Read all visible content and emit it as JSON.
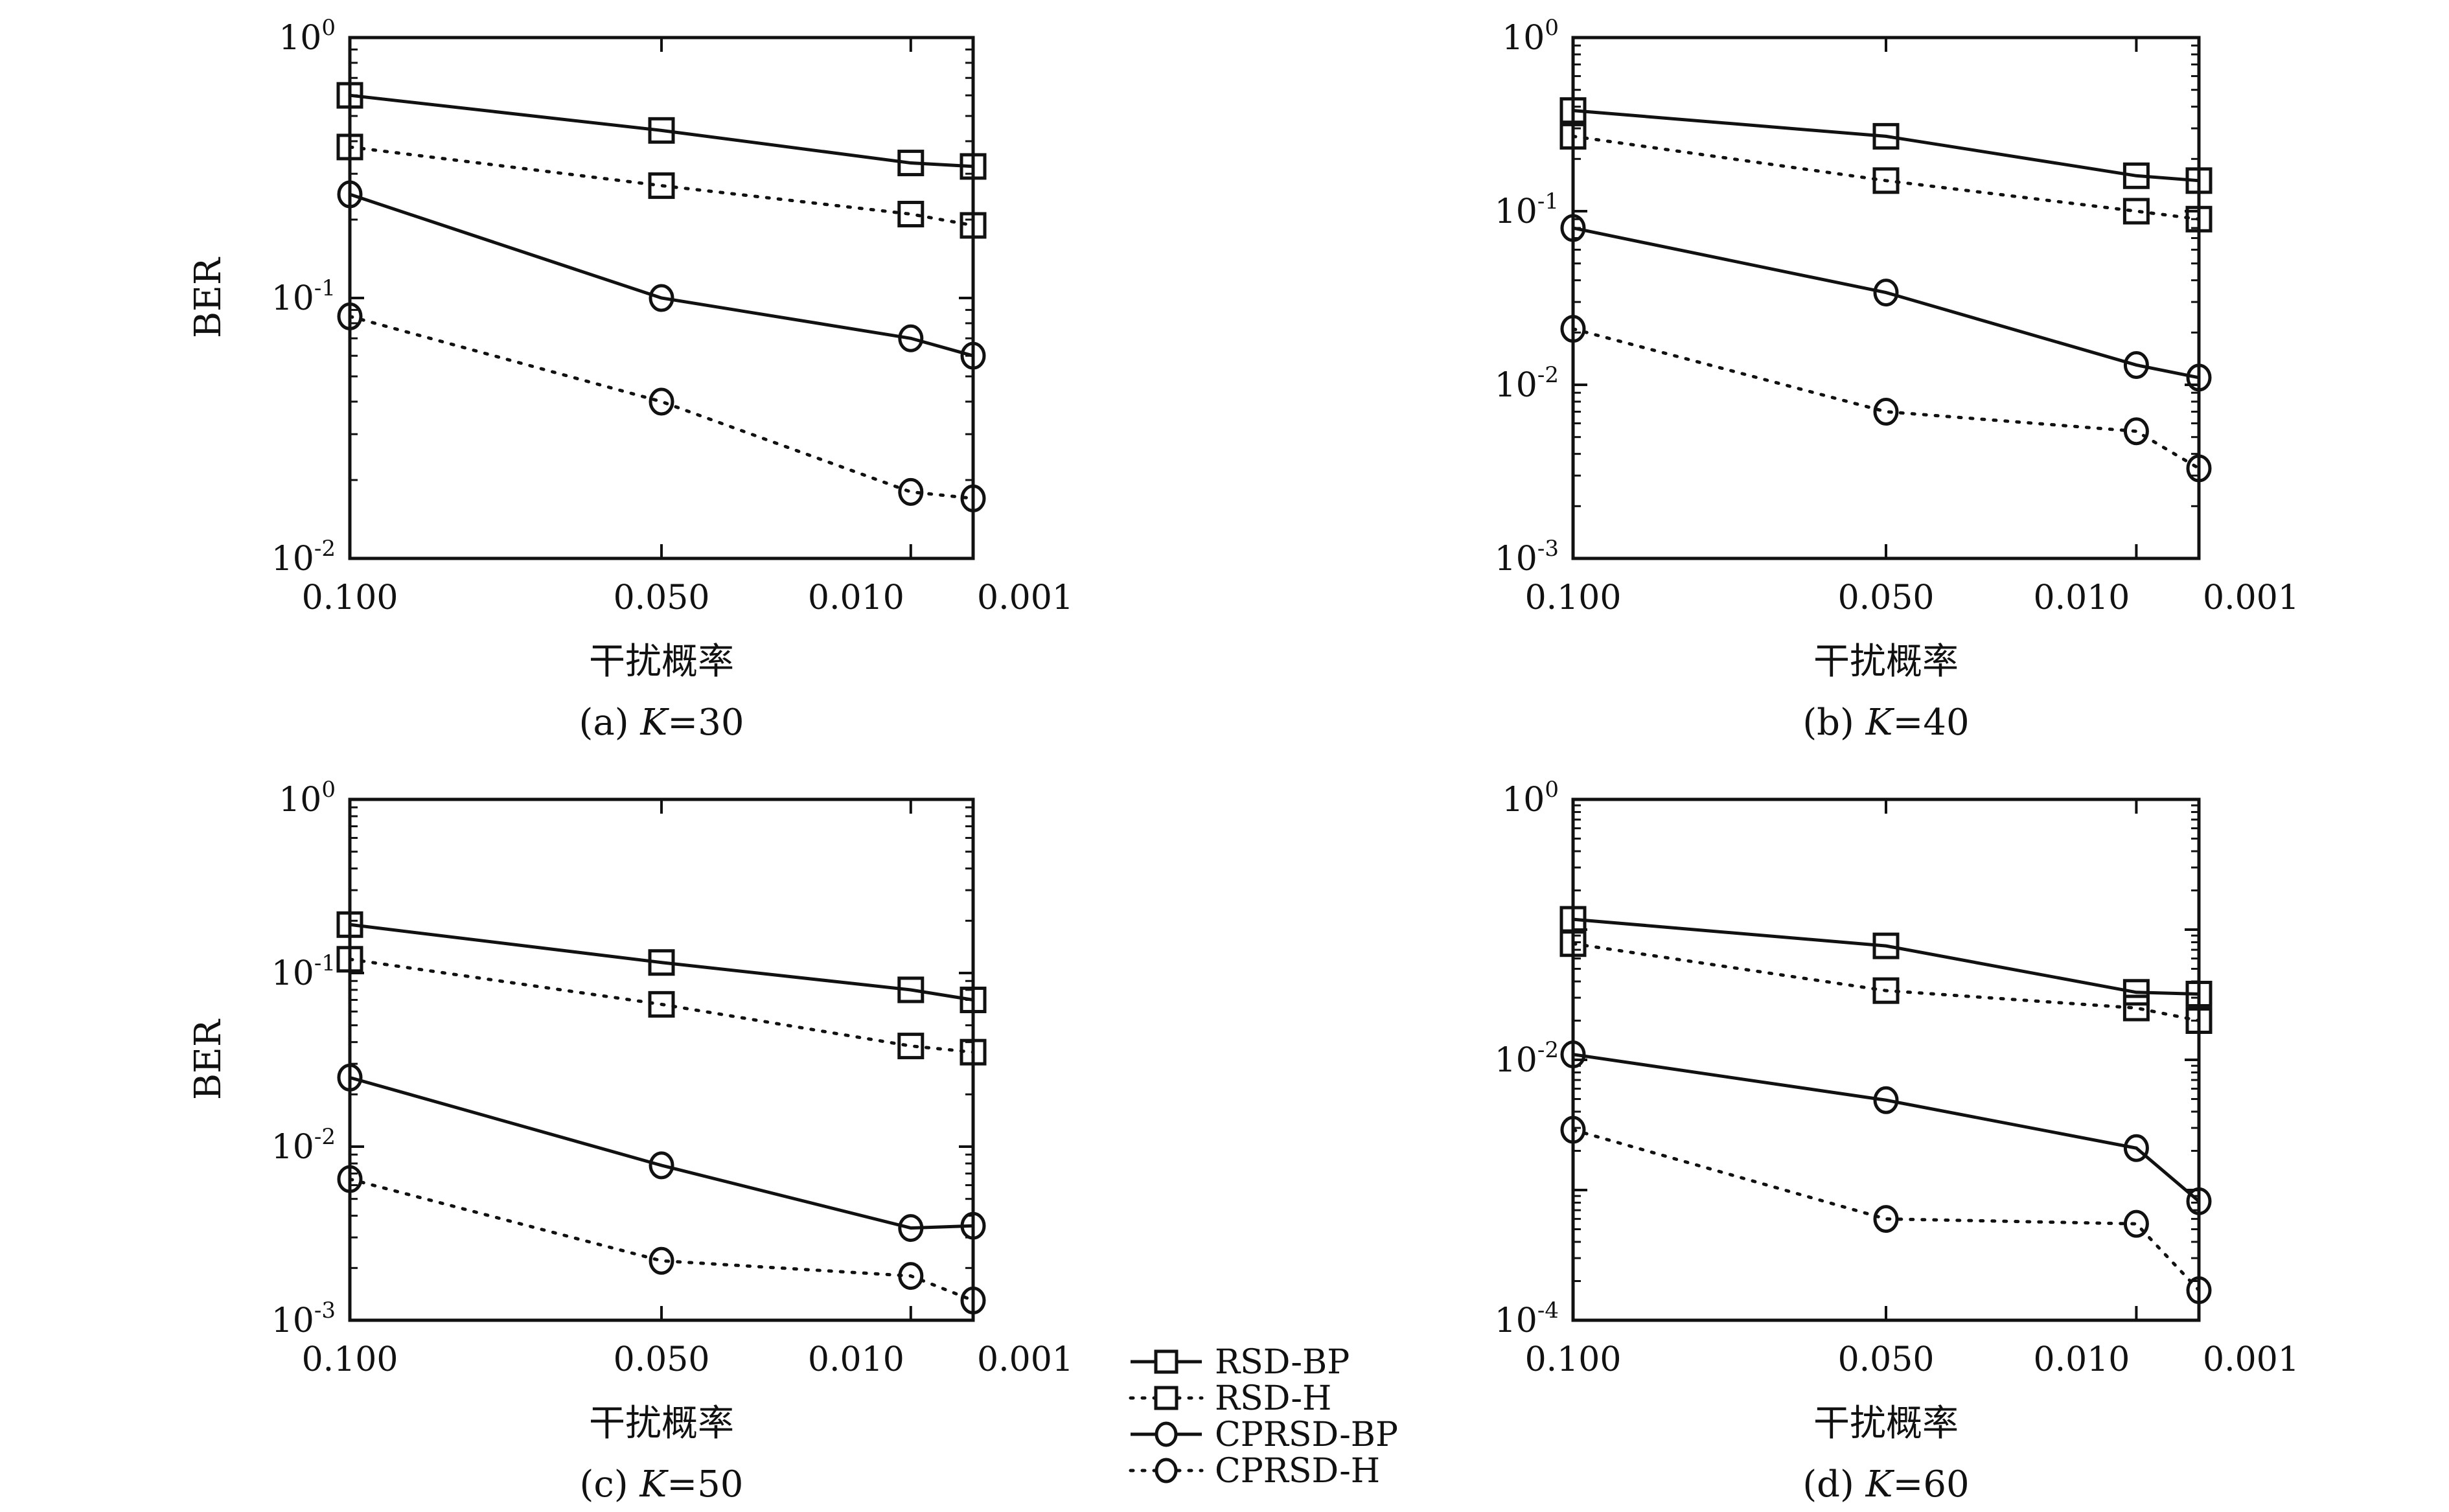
{
  "figure": {
    "legend": {
      "placement": "bottom-center",
      "entries": [
        {
          "label": "RSD-BP",
          "marker": "square",
          "line": "solid"
        },
        {
          "label": "RSD-H",
          "marker": "square",
          "line": "dotted"
        },
        {
          "label": "CPRSD-BP",
          "marker": "circle",
          "line": "solid"
        },
        {
          "label": "CPRSD-H",
          "marker": "circle",
          "line": "dotted"
        }
      ]
    }
  },
  "chart_data": [
    {
      "type": "line",
      "caption_prefix": "(a) ",
      "caption_k": "K",
      "caption_suffix": "=30",
      "xlabel": "干扰概率",
      "ylabel": "BER",
      "x_tick_labels": [
        "0.100",
        "0.050",
        "0.010",
        "0.001"
      ],
      "y_scale": "log",
      "ylim_exp": [
        -2,
        0
      ],
      "y_tick_exps": [
        -2,
        -1,
        0
      ],
      "categories": [
        "0.100",
        "0.050",
        "0.010",
        "0.001"
      ],
      "series": [
        {
          "name": "RSD-BP",
          "values": [
            0.6,
            0.44,
            0.33,
            0.32
          ]
        },
        {
          "name": "RSD-H",
          "values": [
            0.38,
            0.27,
            0.21,
            0.19
          ]
        },
        {
          "name": "CPRSD-BP",
          "values": [
            0.25,
            0.1,
            0.07,
            0.06
          ]
        },
        {
          "name": "CPRSD-H",
          "values": [
            0.085,
            0.04,
            0.018,
            0.017
          ]
        }
      ]
    },
    {
      "type": "line",
      "caption_prefix": "(b) ",
      "caption_k": "K",
      "caption_suffix": "=40",
      "xlabel": "干扰概率",
      "ylabel": "",
      "x_tick_labels": [
        "0.100",
        "0.050",
        "0.010",
        "0.001"
      ],
      "y_scale": "log",
      "ylim_exp": [
        -3,
        0
      ],
      "y_tick_exps": [
        -3,
        -2,
        -1,
        0
      ],
      "categories": [
        "0.100",
        "0.050",
        "0.010",
        "0.001"
      ],
      "series": [
        {
          "name": "RSD-BP",
          "values": [
            0.38,
            0.27,
            0.16,
            0.15
          ]
        },
        {
          "name": "RSD-H",
          "values": [
            0.27,
            0.15,
            0.1,
            0.09
          ]
        },
        {
          "name": "CPRSD-BP",
          "values": [
            0.08,
            0.034,
            0.013,
            0.011
          ]
        },
        {
          "name": "CPRSD-H",
          "values": [
            0.021,
            0.007,
            0.0054,
            0.0033
          ]
        }
      ]
    },
    {
      "type": "line",
      "caption_prefix": "(c) ",
      "caption_k": "K",
      "caption_suffix": "=50",
      "xlabel": "干扰概率",
      "ylabel": "BER",
      "x_tick_labels": [
        "0.100",
        "0.050",
        "0.010",
        "0.001"
      ],
      "y_scale": "log",
      "ylim_exp": [
        -3,
        0
      ],
      "y_tick_exps": [
        -3,
        -2,
        -1,
        0
      ],
      "categories": [
        "0.100",
        "0.050",
        "0.010",
        "0.001"
      ],
      "series": [
        {
          "name": "RSD-BP",
          "values": [
            0.19,
            0.115,
            0.08,
            0.07
          ]
        },
        {
          "name": "RSD-H",
          "values": [
            0.12,
            0.066,
            0.038,
            0.035
          ]
        },
        {
          "name": "CPRSD-BP",
          "values": [
            0.025,
            0.0078,
            0.0034,
            0.0035
          ]
        },
        {
          "name": "CPRSD-H",
          "values": [
            0.0065,
            0.0022,
            0.0018,
            0.0013
          ]
        }
      ]
    },
    {
      "type": "line",
      "caption_prefix": "(d) ",
      "caption_k": "K",
      "caption_suffix": "=60",
      "xlabel": "干扰概率",
      "ylabel": "",
      "x_tick_labels": [
        "0.100",
        "0.050",
        "0.010",
        "0.001"
      ],
      "y_scale": "log",
      "ylim_exp": [
        -4,
        0
      ],
      "y_tick_exps": [
        -4,
        -2,
        0
      ],
      "categories": [
        "0.100",
        "0.050",
        "0.010",
        "0.001"
      ],
      "series": [
        {
          "name": "RSD-BP",
          "values": [
            0.12,
            0.075,
            0.033,
            0.032
          ]
        },
        {
          "name": "RSD-H",
          "values": [
            0.078,
            0.034,
            0.025,
            0.02
          ]
        },
        {
          "name": "CPRSD-BP",
          "values": [
            0.011,
            0.0049,
            0.0021,
            0.00082
          ]
        },
        {
          "name": "CPRSD-H",
          "values": [
            0.0029,
            0.0006,
            0.00055,
            0.00017
          ]
        }
      ]
    }
  ]
}
